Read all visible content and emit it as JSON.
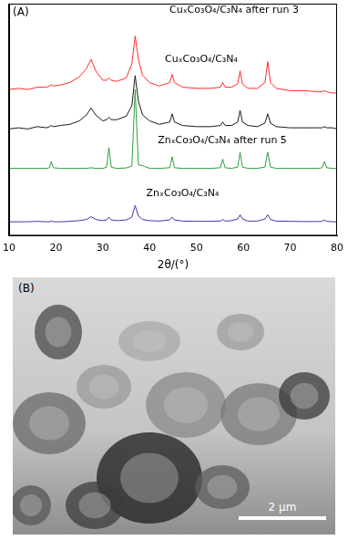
{
  "chart_data": {
    "type": "line",
    "title": "(A)",
    "x_label": "2θ/(°)",
    "x": [
      10,
      12,
      14,
      16,
      18,
      18.6,
      19,
      19.4,
      21,
      23,
      25,
      26.5,
      27.5,
      28.5,
      30,
      30.8,
      31.3,
      31.8,
      33,
      35,
      36.2,
      36.9,
      37.6,
      38.5,
      40,
      42,
      44.3,
      44.8,
      45.3,
      47,
      50,
      53,
      55.1,
      55.6,
      56.1,
      57.5,
      58.8,
      59.3,
      59.8,
      61,
      63,
      64.6,
      65.2,
      65.8,
      67,
      70,
      73,
      76,
      76.8,
      77.3,
      77.8,
      79,
      80
    ],
    "series": [
      {
        "name": "CuₓCo₃O₄/C₃N₄ after run 3",
        "color": "#ff2a2a",
        "values": [
          63,
          63.5,
          63,
          64,
          64,
          64.5,
          65,
          64.5,
          65,
          66,
          68.5,
          72,
          76,
          71,
          67,
          67,
          68,
          67,
          66.5,
          68,
          74,
          86,
          76,
          69,
          66,
          64.5,
          66,
          69.5,
          66,
          64,
          63.5,
          63.5,
          64,
          66,
          64,
          64,
          65.5,
          71,
          65.5,
          63.5,
          63.5,
          66,
          75,
          66,
          63.5,
          62.5,
          62.5,
          62,
          62,
          62.5,
          62,
          61.5,
          61.5
        ]
      },
      {
        "name": "CuₓCo₃O₄/C₃N₄",
        "color": "#1a1a1a",
        "values": [
          46,
          46.5,
          46,
          47,
          46.5,
          47,
          47.5,
          47,
          47.5,
          48,
          49.5,
          52,
          55,
          52,
          49.5,
          50,
          51,
          50,
          50,
          51.5,
          56,
          69,
          58,
          52,
          49.5,
          48,
          49,
          52.5,
          49,
          47.5,
          47,
          47,
          47.5,
          49,
          47.5,
          47.5,
          49,
          54,
          49,
          47.5,
          47,
          48.5,
          52.5,
          48.5,
          47,
          46.5,
          46.5,
          46.5,
          46.5,
          47,
          46.5,
          46.5,
          46
        ]
      },
      {
        "name": "ZnₓCo₃O₄/C₃N₄ after run 5",
        "color": "#2e9e3e",
        "values": [
          29,
          29,
          29,
          29,
          29,
          29.3,
          32,
          29.3,
          29,
          29,
          29,
          29,
          29.3,
          29,
          29,
          29.5,
          38,
          29.5,
          29,
          29.2,
          30,
          63,
          30.5,
          30.2,
          29,
          29,
          29.3,
          34,
          29.3,
          29,
          29,
          29,
          29.3,
          33,
          29.3,
          29,
          29.6,
          36,
          29.6,
          29,
          29,
          29.6,
          36,
          29.6,
          29,
          29,
          29,
          29,
          29.3,
          32,
          29.3,
          29,
          29
        ]
      },
      {
        "name": "ZnₓCo₃O₄/C₃N₄",
        "color": "#3a3aa8",
        "values": [
          6,
          6,
          6,
          6.2,
          6,
          6,
          6.3,
          6,
          6,
          6.2,
          6.5,
          7,
          8.2,
          7,
          6.5,
          6.8,
          8,
          6.8,
          6.5,
          6.8,
          8,
          13,
          8.5,
          7,
          6.5,
          6.3,
          6.8,
          8,
          6.8,
          6.3,
          6.2,
          6.2,
          6.3,
          7,
          6.3,
          6.5,
          7.2,
          9,
          7.2,
          6.3,
          6.3,
          7.2,
          9,
          7,
          6.3,
          6.2,
          6.1,
          6.1,
          6.2,
          6.8,
          6.2,
          6,
          6
        ]
      }
    ],
    "xlim": [
      10,
      80
    ],
    "xticks": [
      10,
      20,
      30,
      40,
      50,
      60,
      70,
      80
    ],
    "ylim": [
      0,
      100
    ],
    "tick_labels": "x",
    "grid": false
  },
  "image": {
    "panel_label": "(B)",
    "scale_bar_label": "2 μm"
  }
}
